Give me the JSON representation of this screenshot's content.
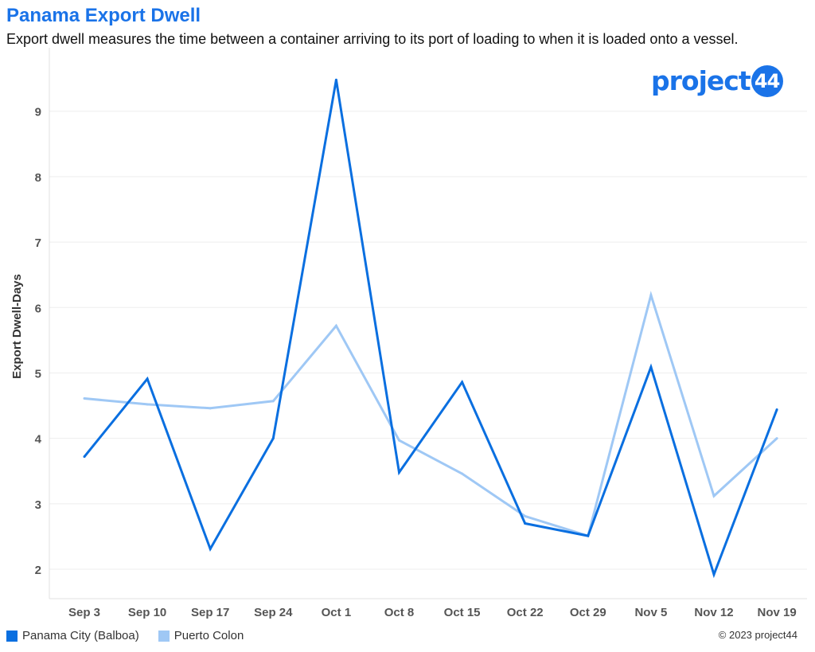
{
  "header": {
    "title": "Panama Export Dwell",
    "subtitle": "Export dwell measures the time between a container arriving to its port of loading to when it is loaded onto a vessel."
  },
  "logo": {
    "text": "project",
    "badge": "44"
  },
  "footer": {
    "copyright": "© 2023 project44"
  },
  "colors": {
    "accent": "#1a73e8",
    "series1": "#0a6fe0",
    "series2": "#9fc8f5"
  },
  "chart_data": {
    "type": "line",
    "ylabel": "Export Dwell-Days",
    "xlabel": "",
    "categories": [
      "Sep 3",
      "Sep 10",
      "Sep 17",
      "Sep 24",
      "Oct 1",
      "Oct 8",
      "Oct 15",
      "Oct 22",
      "Oct 29",
      "Nov 5",
      "Nov 12",
      "Nov 19"
    ],
    "yticks": [
      2,
      3,
      4,
      5,
      6,
      7,
      8,
      9
    ],
    "ylim": [
      1.55,
      9.97
    ],
    "grid": true,
    "legend_position": "bottom-left",
    "series": [
      {
        "name": "Panama City (Balboa)",
        "color": "#0a6fe0",
        "values": [
          3.72,
          4.91,
          2.31,
          4.0,
          9.48,
          3.48,
          4.86,
          2.7,
          2.51,
          5.09,
          1.92,
          4.44
        ]
      },
      {
        "name": "Puerto Colon",
        "color": "#9fc8f5",
        "values": [
          4.61,
          4.52,
          4.46,
          4.57,
          5.72,
          3.97,
          3.46,
          2.81,
          2.51,
          6.19,
          3.12,
          4.0
        ]
      }
    ]
  }
}
